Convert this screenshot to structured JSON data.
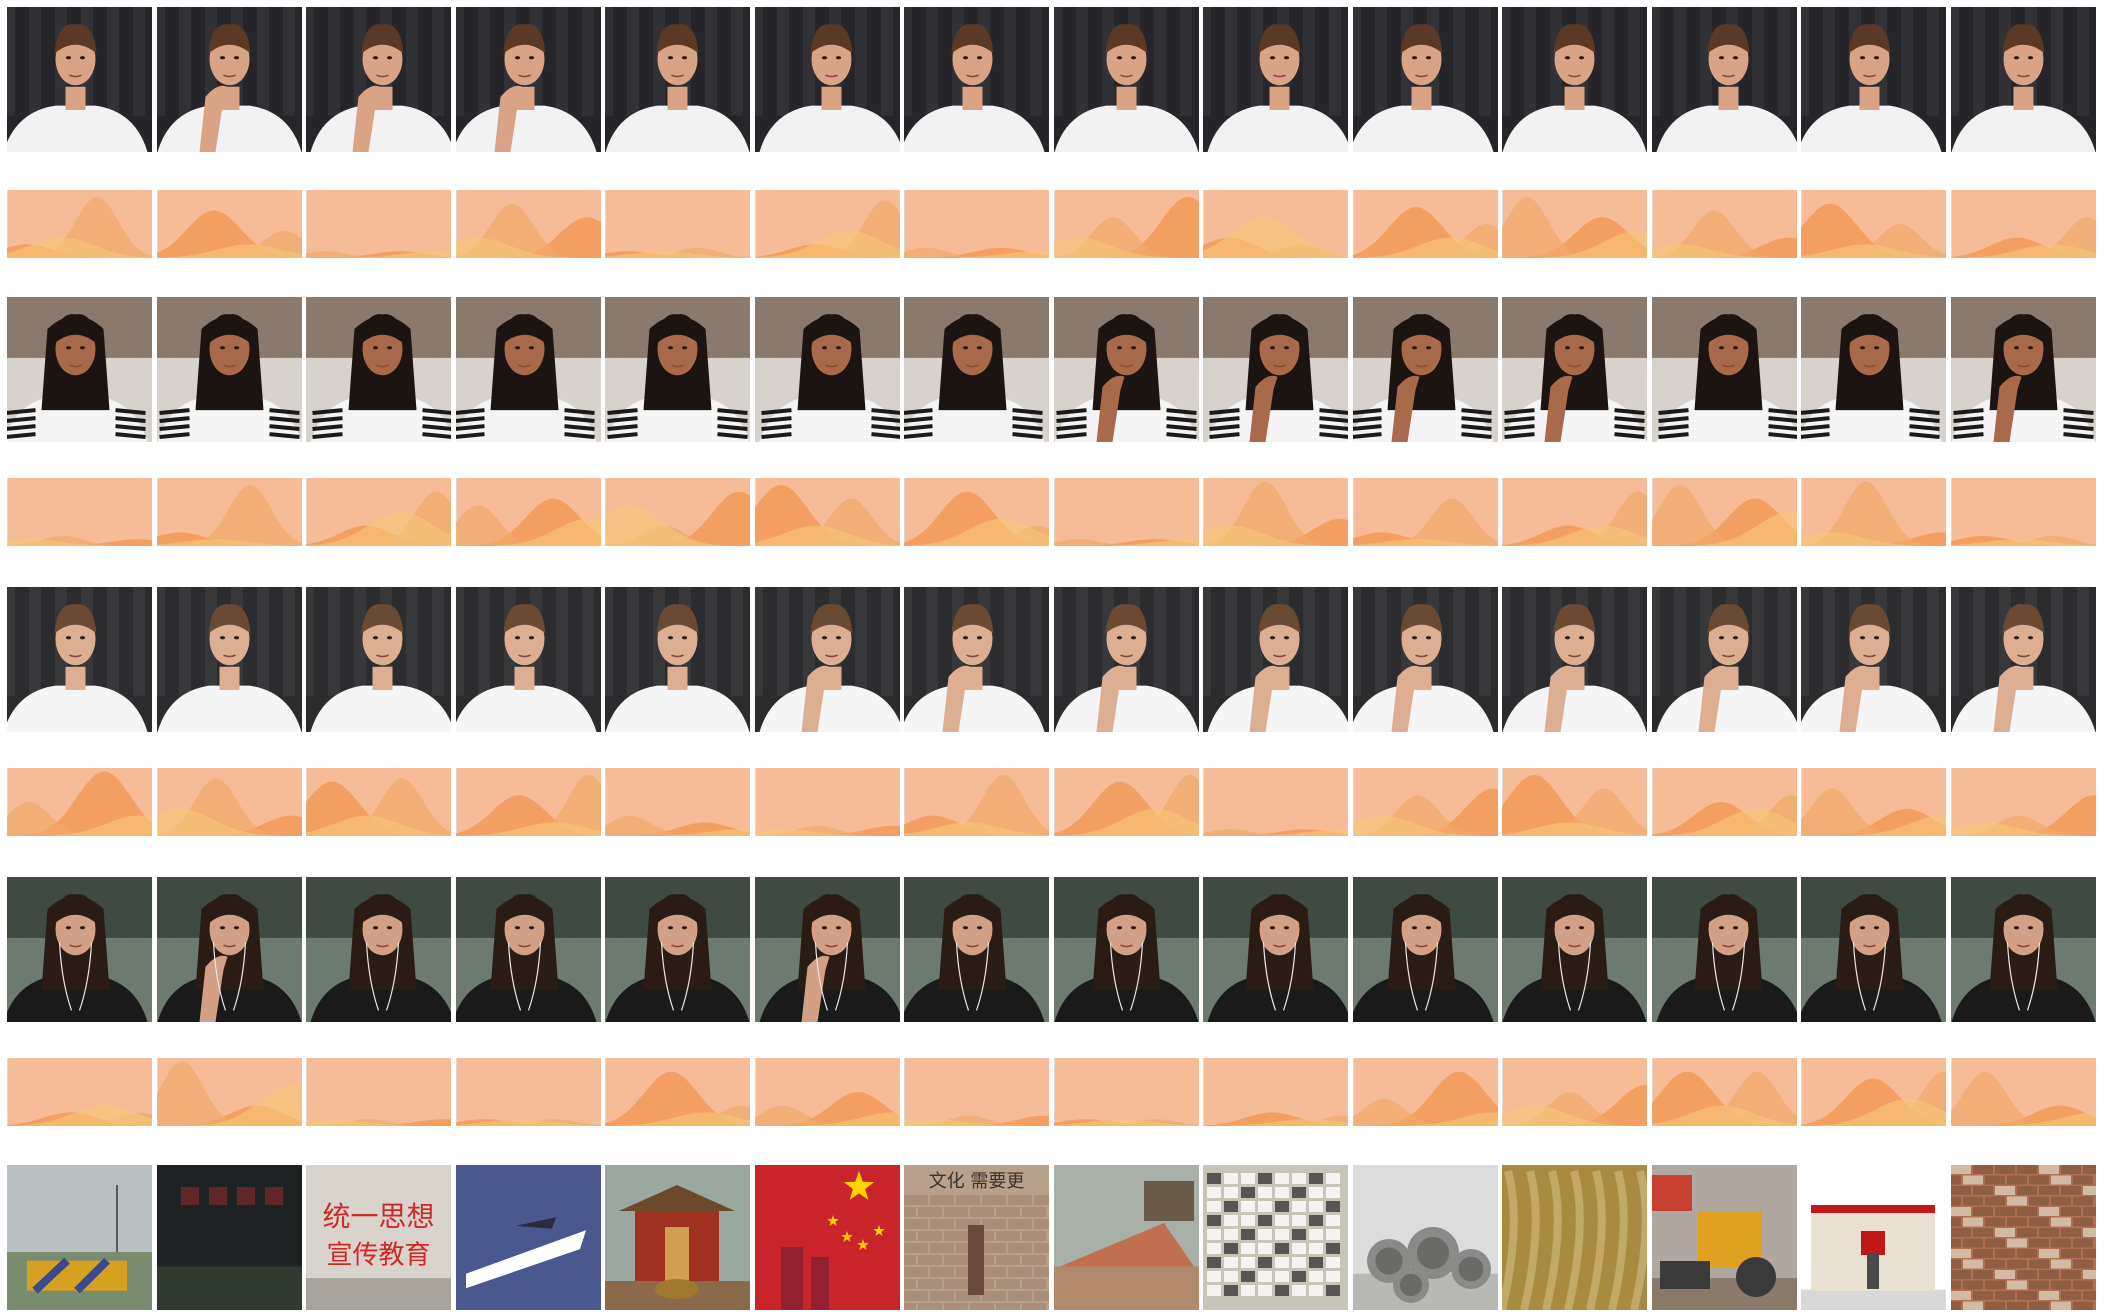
{
  "participants": [
    {
      "id": "p1",
      "palette": {
        "wall": "#26262a",
        "curtain": "#3a3a40",
        "skin": "#d9a386",
        "hair": "#5a3a26",
        "shirt": "#f2f2f2"
      },
      "frames": 14,
      "pose_per_frame": [
        "neutral",
        "hand-chin",
        "hand-chin",
        "hand-chin",
        "neutral",
        "neutral",
        "neutral",
        "neutral",
        "neutral",
        "neutral",
        "neutral",
        "neutral",
        "neutral",
        "neutral"
      ],
      "emotion_curves": [
        [
          0.2,
          0.9,
          0.3
        ],
        [
          0.7,
          0.4,
          0.2
        ],
        [
          0.1,
          0.1,
          0.1
        ],
        [
          0.6,
          0.8,
          0.3
        ],
        [
          0.1,
          0.15,
          0.1
        ],
        [
          0.2,
          0.85,
          0.4
        ],
        [
          0.15,
          0.15,
          0.1
        ],
        [
          0.9,
          0.6,
          0.3
        ],
        [
          0.3,
          0.2,
          0.6
        ],
        [
          0.75,
          0.5,
          0.3
        ],
        [
          0.6,
          0.9,
          0.4
        ],
        [
          0.3,
          0.7,
          0.2
        ],
        [
          0.8,
          0.5,
          0.2
        ],
        [
          0.3,
          0.6,
          0.2
        ]
      ]
    },
    {
      "id": "p2",
      "palette": {
        "wall": "#8a7a6e",
        "curtain": "#d8d2cc",
        "skin": "#a86a4a",
        "hair": "#1c1410",
        "shirt": "#f4f4f4"
      },
      "frames": 14,
      "pose_per_frame": [
        "neutral",
        "neutral",
        "neutral",
        "neutral",
        "neutral",
        "neutral",
        "neutral",
        "hand-chin",
        "hand-chin",
        "hand-chin",
        "hand-chin",
        "neutral",
        "neutral",
        "hand-chin"
      ],
      "emotion_curves": [
        [
          0.1,
          0.15,
          0.1
        ],
        [
          0.2,
          0.9,
          0.1
        ],
        [
          0.3,
          0.8,
          0.5
        ],
        [
          0.7,
          0.6,
          0.4
        ],
        [
          0.8,
          0.3,
          0.6
        ],
        [
          0.9,
          0.7,
          0.3
        ],
        [
          0.8,
          0.3,
          0.4
        ],
        [
          0.1,
          0.1,
          0.1
        ],
        [
          0.4,
          0.95,
          0.3
        ],
        [
          0.2,
          0.7,
          0.1
        ],
        [
          0.3,
          0.8,
          0.3
        ],
        [
          0.7,
          0.9,
          0.5
        ],
        [
          0.2,
          0.95,
          0.2
        ],
        [
          0.15,
          0.15,
          0.1
        ]
      ]
    },
    {
      "id": "p3",
      "palette": {
        "wall": "#2c2c2e",
        "curtain": "#434347",
        "skin": "#dcae92",
        "hair": "#6a4a32",
        "shirt": "#f5f5f5"
      },
      "frames": 14,
      "pose_per_frame": [
        "neutral",
        "neutral",
        "neutral",
        "neutral",
        "neutral",
        "hand-chin",
        "hand-chin",
        "hand-chin",
        "hand-chin",
        "hand-chin",
        "hand-chin",
        "hand-chin",
        "hand-chin",
        "hand-chin"
      ],
      "emotion_curves": [
        [
          0.95,
          0.5,
          0.3
        ],
        [
          0.3,
          0.85,
          0.4
        ],
        [
          0.8,
          0.85,
          0.3
        ],
        [
          0.6,
          0.9,
          0.2
        ],
        [
          0.2,
          0.3,
          0.1
        ],
        [
          0.15,
          0.15,
          0.1
        ],
        [
          0.3,
          0.9,
          0.2
        ],
        [
          0.8,
          0.9,
          0.4
        ],
        [
          0.1,
          0.1,
          0.1
        ],
        [
          0.7,
          0.6,
          0.3
        ],
        [
          0.9,
          0.7,
          0.2
        ],
        [
          0.5,
          0.6,
          0.4
        ],
        [
          0.4,
          0.7,
          0.3
        ],
        [
          0.6,
          0.3,
          0.2
        ]
      ]
    },
    {
      "id": "p4",
      "palette": {
        "wall": "#3e4a42",
        "curtain": "#6c7a70",
        "skin": "#d2a084",
        "hair": "#2a1c14",
        "shirt": "#1a1a1a"
      },
      "frames": 14,
      "pose_per_frame": [
        "neutral",
        "hand-chin",
        "neutral",
        "neutral",
        "neutral",
        "hand-chin",
        "neutral",
        "neutral",
        "neutral",
        "neutral",
        "neutral",
        "neutral",
        "neutral",
        "neutral"
      ],
      "emotion_curves": [
        [
          0.2,
          0.2,
          0.3
        ],
        [
          0.3,
          0.95,
          0.6
        ],
        [
          0.1,
          0.1,
          0.1
        ],
        [
          0.1,
          0.1,
          0.1
        ],
        [
          0.8,
          0.3,
          0.2
        ],
        [
          0.5,
          0.3,
          0.2
        ],
        [
          0.15,
          0.15,
          0.1
        ],
        [
          0.1,
          0.1,
          0.1
        ],
        [
          0.2,
          0.15,
          0.1
        ],
        [
          0.8,
          0.4,
          0.2
        ],
        [
          0.6,
          0.5,
          0.3
        ],
        [
          0.8,
          0.8,
          0.3
        ],
        [
          0.7,
          0.8,
          0.4
        ],
        [
          0.3,
          0.8,
          0.2
        ]
      ]
    }
  ],
  "artworks": [
    {
      "id": "a1",
      "bg": "#b8c0c2",
      "ground": "#7a8c6e",
      "accent": "#d6a020",
      "accent2": "#3a4a8a",
      "kind": "road-figure"
    },
    {
      "id": "a2",
      "bg": "#1e2222",
      "ground": "#2e3a2e",
      "accent": "#7a2a2a",
      "accent2": "#4a5a4a",
      "kind": "dark-wall"
    },
    {
      "id": "a3",
      "bg": "#d8d4cc",
      "ground": "#a8a49c",
      "accent": "#d02828",
      "accent2": "#8a847a",
      "kind": "slogan-wall",
      "line1": "统一思想",
      "line2": "宣传教育"
    },
    {
      "id": "a4",
      "bg": "#4a5890",
      "ground": "#3a4678",
      "accent": "#ffffff",
      "accent2": "#2a2a40",
      "kind": "arrow-road"
    },
    {
      "id": "a5",
      "bg": "#9aa8a0",
      "ground": "#6a4a2a",
      "accent": "#a03020",
      "accent2": "#d0a050",
      "kind": "temple"
    },
    {
      "id": "a6",
      "bg": "#c8242a",
      "ground": "#b01e24",
      "accent": "#ffd400",
      "accent2": "#7a2030",
      "kind": "flag"
    },
    {
      "id": "a7",
      "bg": "#b8a08a",
      "ground": "#a0826a",
      "accent": "#3a3230",
      "accent2": "#6a4a3a",
      "kind": "brick-text",
      "line1": "文化 需要更"
    },
    {
      "id": "a8",
      "bg": "#a8b0a8",
      "ground": "#b08a6a",
      "accent": "#c07050",
      "accent2": "#6a5a4a",
      "kind": "rubble"
    },
    {
      "id": "a9",
      "bg": "#c8c4b8",
      "ground": "#8a8070",
      "accent": "#3a3a3a",
      "accent2": "#ffffff",
      "kind": "posters"
    },
    {
      "id": "a10",
      "bg": "#dcdcdc",
      "ground": "#b8b8b4",
      "accent": "#8a8a88",
      "accent2": "#6a6a68",
      "kind": "pipes"
    },
    {
      "id": "a11",
      "bg": "#b89a4a",
      "ground": "#9a7a30",
      "accent": "#e8d090",
      "accent2": "#6a5020",
      "kind": "sculpture"
    },
    {
      "id": "a12",
      "bg": "#b0a8a0",
      "ground": "#8a7a6a",
      "accent": "#e0a020",
      "accent2": "#3a3a3a",
      "kind": "bulldozer"
    },
    {
      "id": "a13",
      "bg": "#ffffff",
      "ground": "#d8d8d8",
      "accent": "#c01818",
      "accent2": "#4a4a4a",
      "kind": "red-gate"
    },
    {
      "id": "a14",
      "bg": "#b07050",
      "ground": "#8a5a40",
      "accent": "#d8c8b0",
      "accent2": "#6a3a2a",
      "kind": "brick-wall"
    }
  ],
  "colors": {
    "chart_bg": "#f6bc97",
    "curve_a": "#f29650",
    "curve_b": "#f0a868",
    "curve_c": "#f8c878",
    "curve_d": "#eaa0a0"
  }
}
